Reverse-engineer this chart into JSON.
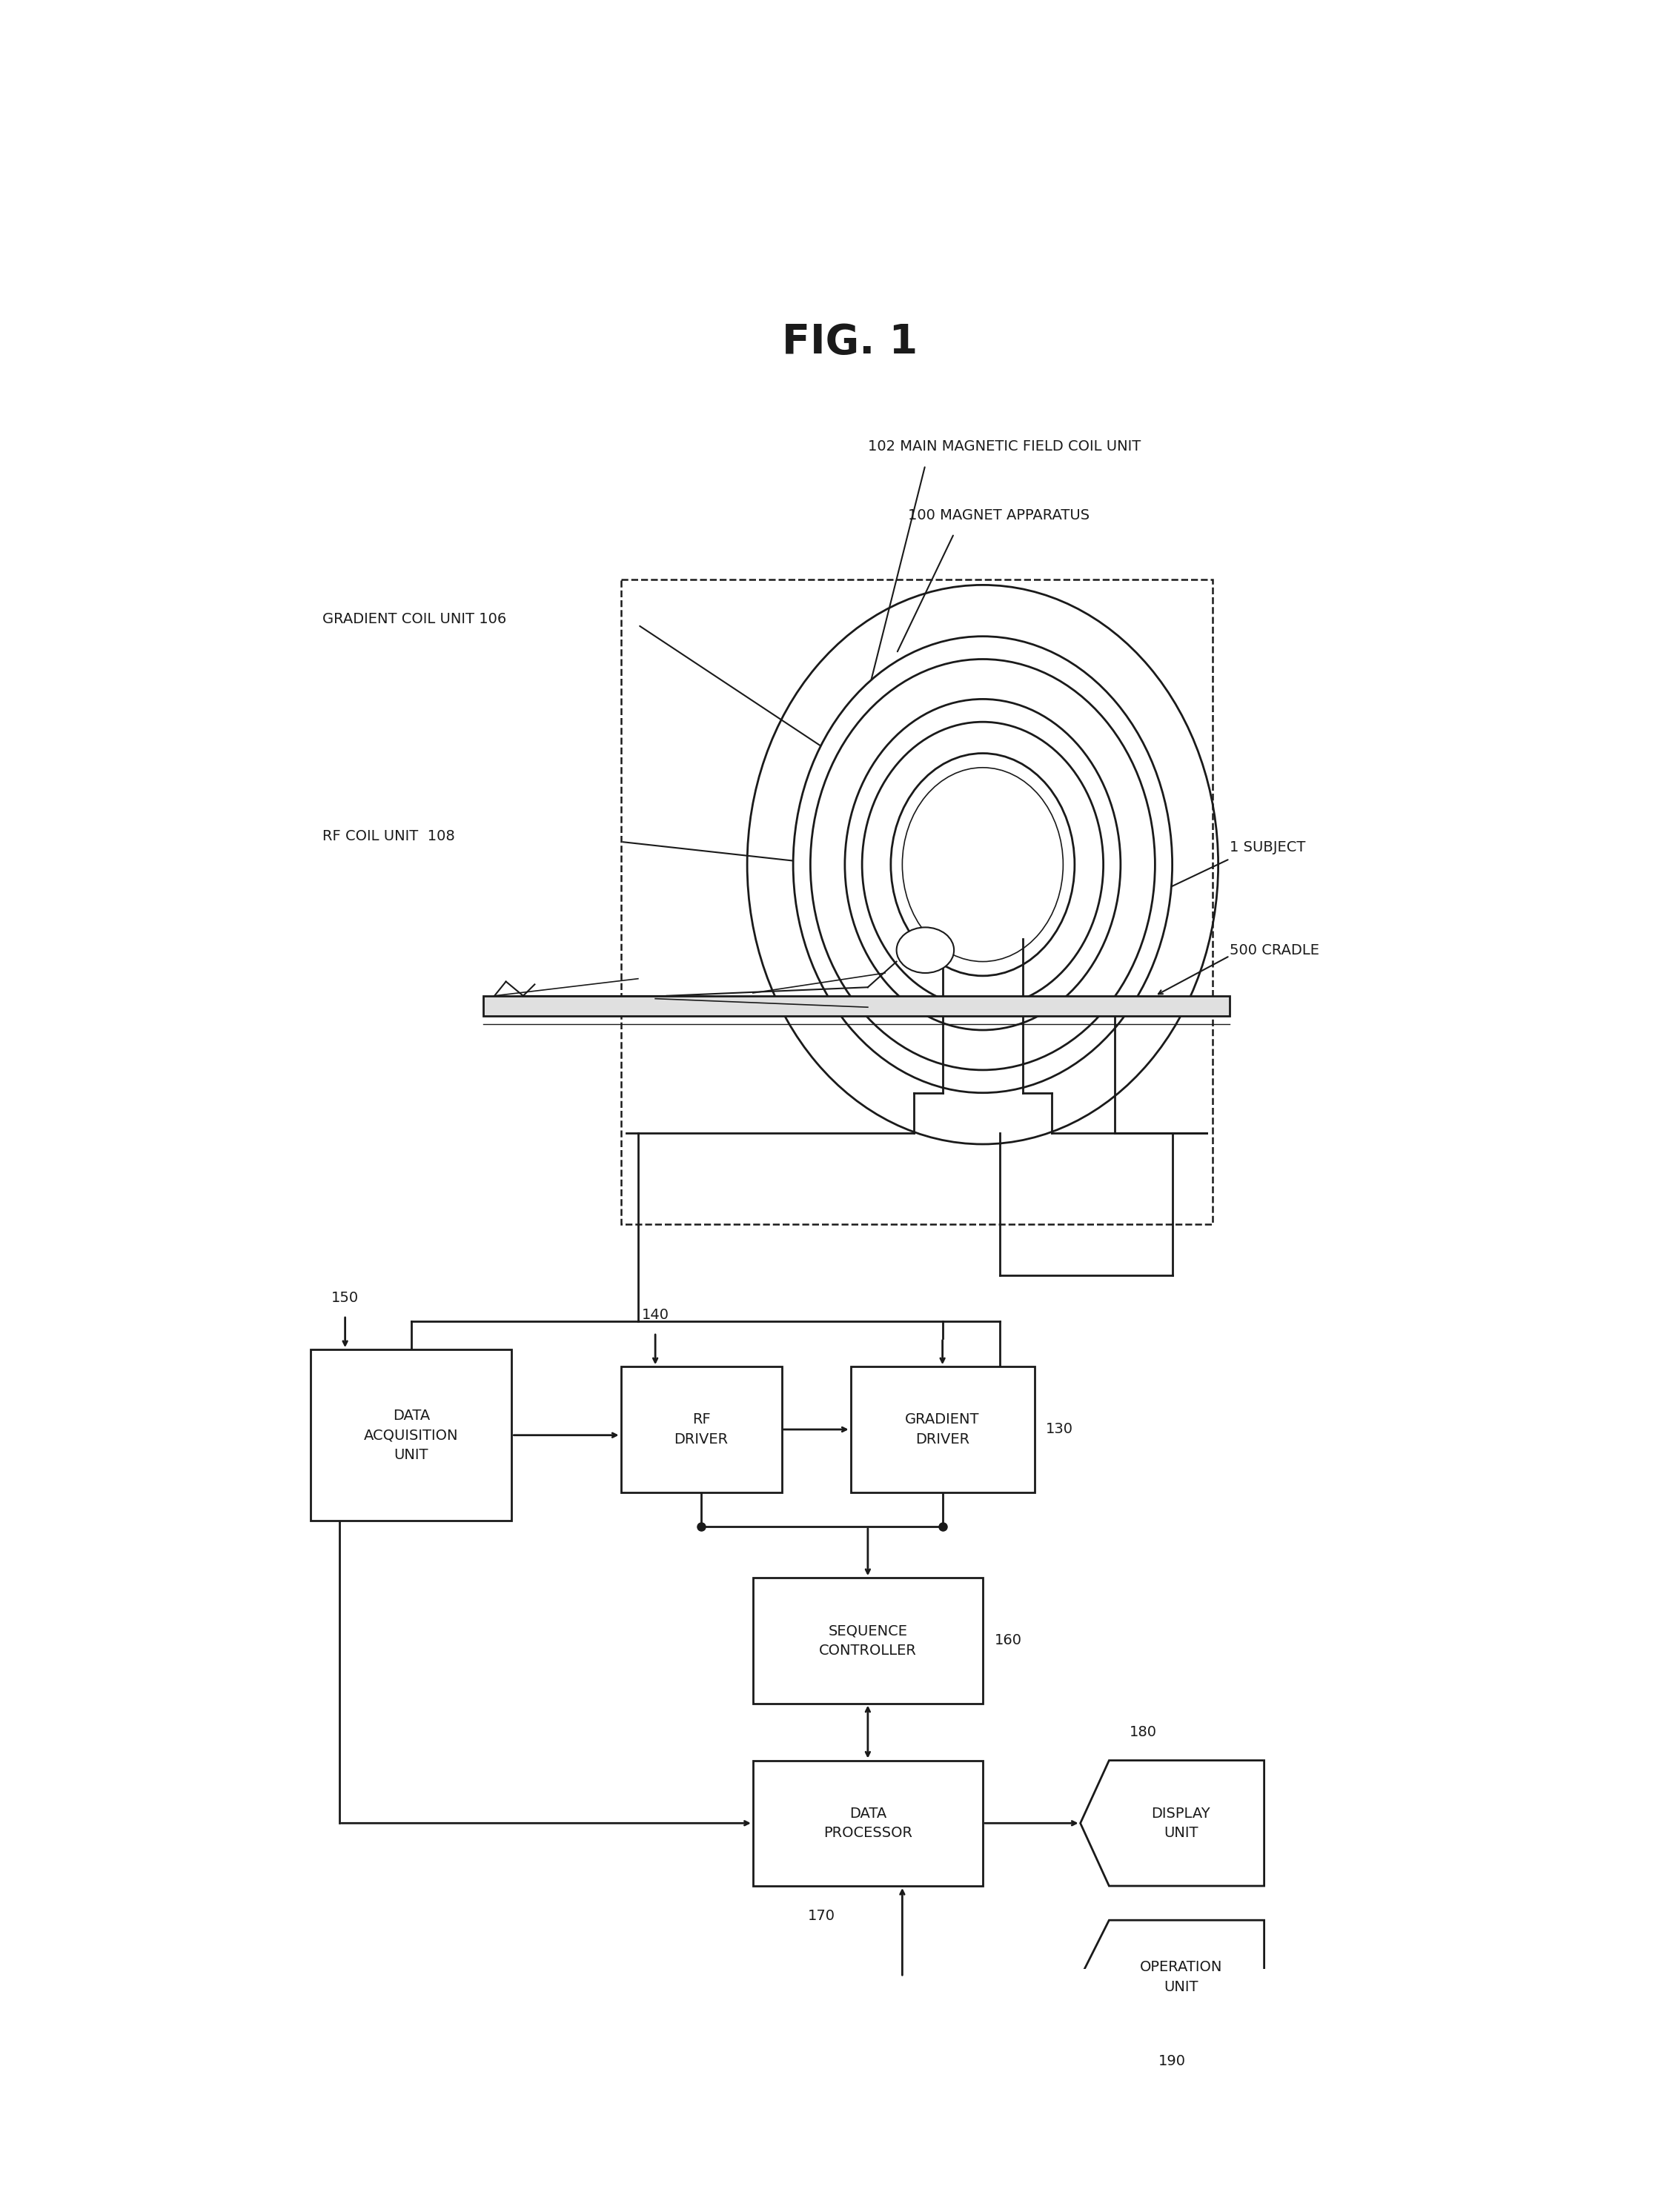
{
  "title": "FIG. 1",
  "title_fontsize": 40,
  "background_color": "#ffffff",
  "line_color": "#1a1a1a",
  "text_color": "#1a1a1a",
  "label_fontsize": 14,
  "labels": {
    "main_magnetic": "102 MAIN MAGNETIC FIELD COIL UNIT",
    "magnet_apparatus": "100 MAGNET APPARATUS",
    "gradient_coil": "GRADIENT COIL UNIT 106",
    "rf_coil": "RF COIL UNIT  108",
    "subject": "1 SUBJECT",
    "cradle": "500 CRADLE",
    "data_acquisition": "DATA\nACQUISITION\nUNIT",
    "rf_driver": "RF\nDRIVER",
    "gradient_driver": "GRADIENT\nDRIVER",
    "sequence_controller": "SEQUENCE\nCONTROLLER",
    "data_processor": "DATA\nPROCESSOR",
    "display_unit": "DISPLAY\nUNIT",
    "operation_unit": "OPERATION\nUNIT",
    "num_150": "150",
    "num_140": "140",
    "num_130": "130",
    "num_160": "160",
    "num_170": "170",
    "num_180": "180",
    "num_190": "190"
  }
}
